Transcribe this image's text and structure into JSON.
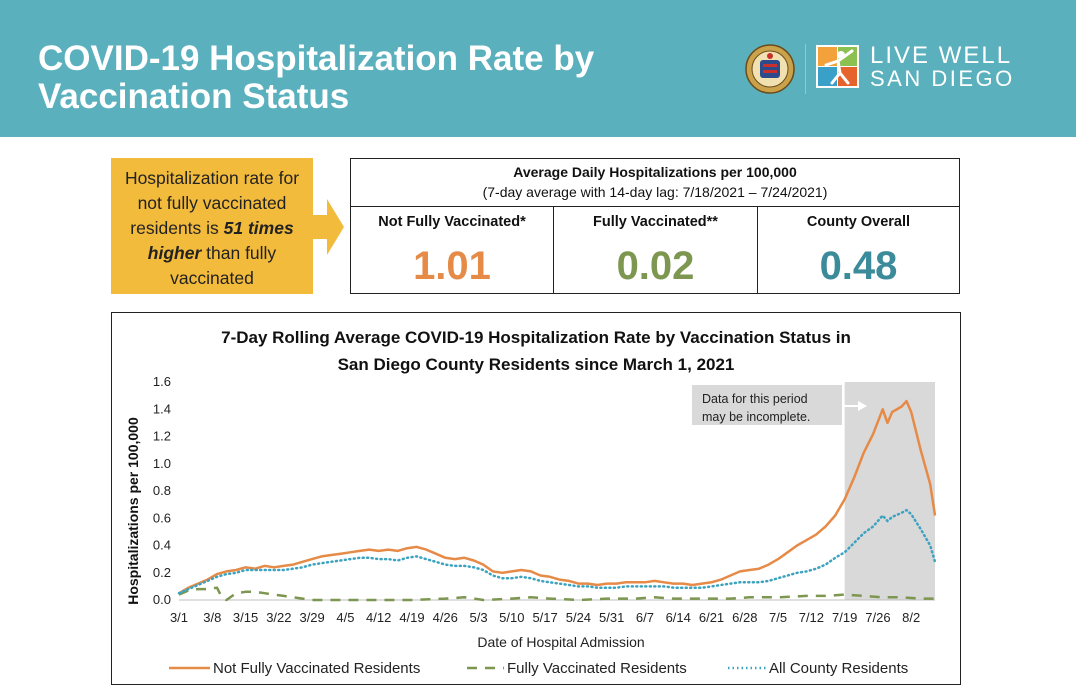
{
  "header": {
    "title_line1": "COVID-19 Hospitalization Rate by",
    "title_line2": "Vaccination Status",
    "logo_line1": "LIVE WELL",
    "logo_line2": "SAN DIEGO"
  },
  "callout": {
    "line1": "Hospitalization rate for",
    "line2": "not fully vaccinated",
    "line3_prefix": "residents is ",
    "line3_emph": "51 times",
    "line4_emph": "higher",
    "line4_suffix": " than fully",
    "line5": "vaccinated"
  },
  "stats": {
    "title": "Average Daily Hospitalizations per 100,000",
    "subtitle": "(7-day average with 14-day lag: 7/18/2021 – 7/24/2021)",
    "cells": [
      {
        "label": "Not Fully Vaccinated*",
        "value": "1.01",
        "color": "#e68a47"
      },
      {
        "label": "Fully Vaccinated**",
        "value": "0.02",
        "color": "#7d9650"
      },
      {
        "label": "County Overall",
        "value": "0.48",
        "color": "#3c8b9a"
      }
    ]
  },
  "chart_data": {
    "type": "line",
    "title_line1": "7-Day Rolling Average COVID-19 Hospitalization Rate by Vaccination Status in",
    "title_line2": "San Diego County Residents since March 1, 2021",
    "xlabel": "Date of Hospital Admission",
    "ylabel": "Hospitalizations per 100,000",
    "ylim": [
      0,
      1.6
    ],
    "yticks": [
      "0.0",
      "0.2",
      "0.4",
      "0.6",
      "0.8",
      "1.0",
      "1.2",
      "1.4",
      "1.6"
    ],
    "xticks": [
      "3/1",
      "3/8",
      "3/15",
      "3/22",
      "3/29",
      "4/5",
      "4/12",
      "4/19",
      "4/26",
      "5/3",
      "5/10",
      "5/17",
      "5/24",
      "5/31",
      "6/7",
      "6/14",
      "6/21",
      "6/28",
      "7/5",
      "7/12",
      "7/19",
      "7/26",
      "8/2"
    ],
    "x_days": [
      0,
      7,
      14,
      21,
      28,
      35,
      42,
      49,
      56,
      63,
      70,
      77,
      84,
      91,
      98,
      105,
      112,
      119,
      126,
      133,
      140,
      147,
      154
    ],
    "x_range_days": [
      0,
      159
    ],
    "shaded_region_days": [
      140,
      159
    ],
    "annotation_line1": "Data for this period",
    "annotation_line2": "may be incomplete.",
    "series": [
      {
        "name": "Not Fully Vaccinated Residents",
        "color": "#e68a47",
        "style": "solid",
        "points": [
          [
            0,
            0.05
          ],
          [
            2,
            0.09
          ],
          [
            4,
            0.12
          ],
          [
            6,
            0.15
          ],
          [
            8,
            0.19
          ],
          [
            10,
            0.21
          ],
          [
            12,
            0.22
          ],
          [
            14,
            0.24
          ],
          [
            16,
            0.23
          ],
          [
            18,
            0.25
          ],
          [
            20,
            0.24
          ],
          [
            22,
            0.25
          ],
          [
            24,
            0.26
          ],
          [
            26,
            0.28
          ],
          [
            28,
            0.3
          ],
          [
            30,
            0.32
          ],
          [
            32,
            0.33
          ],
          [
            34,
            0.34
          ],
          [
            36,
            0.35
          ],
          [
            38,
            0.36
          ],
          [
            40,
            0.37
          ],
          [
            42,
            0.36
          ],
          [
            44,
            0.37
          ],
          [
            46,
            0.36
          ],
          [
            48,
            0.38
          ],
          [
            50,
            0.39
          ],
          [
            52,
            0.37
          ],
          [
            54,
            0.34
          ],
          [
            56,
            0.31
          ],
          [
            58,
            0.3
          ],
          [
            60,
            0.31
          ],
          [
            62,
            0.29
          ],
          [
            64,
            0.26
          ],
          [
            66,
            0.21
          ],
          [
            68,
            0.2
          ],
          [
            70,
            0.21
          ],
          [
            72,
            0.22
          ],
          [
            74,
            0.21
          ],
          [
            76,
            0.18
          ],
          [
            78,
            0.17
          ],
          [
            80,
            0.15
          ],
          [
            82,
            0.14
          ],
          [
            84,
            0.12
          ],
          [
            86,
            0.12
          ],
          [
            88,
            0.11
          ],
          [
            90,
            0.12
          ],
          [
            92,
            0.12
          ],
          [
            94,
            0.13
          ],
          [
            96,
            0.13
          ],
          [
            98,
            0.13
          ],
          [
            100,
            0.14
          ],
          [
            102,
            0.13
          ],
          [
            104,
            0.12
          ],
          [
            106,
            0.12
          ],
          [
            108,
            0.11
          ],
          [
            110,
            0.12
          ],
          [
            112,
            0.13
          ],
          [
            114,
            0.15
          ],
          [
            116,
            0.18
          ],
          [
            118,
            0.21
          ],
          [
            120,
            0.22
          ],
          [
            122,
            0.23
          ],
          [
            124,
            0.26
          ],
          [
            126,
            0.3
          ],
          [
            128,
            0.35
          ],
          [
            130,
            0.4
          ],
          [
            132,
            0.44
          ],
          [
            134,
            0.48
          ],
          [
            136,
            0.54
          ],
          [
            138,
            0.62
          ],
          [
            140,
            0.74
          ],
          [
            142,
            0.9
          ],
          [
            144,
            1.08
          ],
          [
            146,
            1.22
          ],
          [
            148,
            1.4
          ],
          [
            149,
            1.3
          ],
          [
            150,
            1.38
          ],
          [
            152,
            1.42
          ],
          [
            153,
            1.46
          ],
          [
            154,
            1.38
          ],
          [
            156,
            1.1
          ],
          [
            158,
            0.85
          ],
          [
            159,
            0.62
          ]
        ]
      },
      {
        "name": "Fully Vaccinated Residents",
        "color": "#7d9650",
        "style": "dashed",
        "points": [
          [
            0,
            0.04
          ],
          [
            2,
            0.07
          ],
          [
            4,
            0.08
          ],
          [
            6,
            0.08
          ],
          [
            8,
            0.09
          ],
          [
            9,
            0.02
          ],
          [
            10,
            0.0
          ],
          [
            12,
            0.05
          ],
          [
            14,
            0.06
          ],
          [
            16,
            0.06
          ],
          [
            18,
            0.05
          ],
          [
            20,
            0.04
          ],
          [
            22,
            0.03
          ],
          [
            24,
            0.02
          ],
          [
            26,
            0.01
          ],
          [
            28,
            0.0
          ],
          [
            35,
            0.0
          ],
          [
            42,
            0.0
          ],
          [
            49,
            0.0
          ],
          [
            56,
            0.01
          ],
          [
            60,
            0.02
          ],
          [
            62,
            0.01
          ],
          [
            64,
            0.0
          ],
          [
            70,
            0.01
          ],
          [
            74,
            0.02
          ],
          [
            78,
            0.01
          ],
          [
            84,
            0.0
          ],
          [
            90,
            0.01
          ],
          [
            96,
            0.01
          ],
          [
            100,
            0.02
          ],
          [
            104,
            0.01
          ],
          [
            110,
            0.01
          ],
          [
            116,
            0.01
          ],
          [
            120,
            0.02
          ],
          [
            126,
            0.02
          ],
          [
            132,
            0.03
          ],
          [
            136,
            0.03
          ],
          [
            140,
            0.04
          ],
          [
            144,
            0.03
          ],
          [
            148,
            0.02
          ],
          [
            152,
            0.02
          ],
          [
            156,
            0.01
          ],
          [
            159,
            0.01
          ]
        ]
      },
      {
        "name": "All County Residents",
        "color": "#3ba3c0",
        "style": "dotted",
        "points": [
          [
            0,
            0.05
          ],
          [
            2,
            0.08
          ],
          [
            4,
            0.11
          ],
          [
            6,
            0.14
          ],
          [
            8,
            0.17
          ],
          [
            10,
            0.19
          ],
          [
            12,
            0.2
          ],
          [
            14,
            0.22
          ],
          [
            16,
            0.22
          ],
          [
            18,
            0.22
          ],
          [
            20,
            0.22
          ],
          [
            22,
            0.22
          ],
          [
            24,
            0.23
          ],
          [
            26,
            0.24
          ],
          [
            28,
            0.26
          ],
          [
            30,
            0.27
          ],
          [
            32,
            0.28
          ],
          [
            34,
            0.29
          ],
          [
            36,
            0.3
          ],
          [
            38,
            0.31
          ],
          [
            40,
            0.31
          ],
          [
            42,
            0.3
          ],
          [
            44,
            0.3
          ],
          [
            46,
            0.29
          ],
          [
            48,
            0.31
          ],
          [
            50,
            0.32
          ],
          [
            52,
            0.3
          ],
          [
            54,
            0.28
          ],
          [
            56,
            0.26
          ],
          [
            58,
            0.25
          ],
          [
            60,
            0.25
          ],
          [
            62,
            0.24
          ],
          [
            64,
            0.22
          ],
          [
            66,
            0.18
          ],
          [
            68,
            0.16
          ],
          [
            70,
            0.16
          ],
          [
            72,
            0.17
          ],
          [
            74,
            0.16
          ],
          [
            76,
            0.14
          ],
          [
            78,
            0.13
          ],
          [
            80,
            0.12
          ],
          [
            82,
            0.11
          ],
          [
            84,
            0.1
          ],
          [
            86,
            0.1
          ],
          [
            88,
            0.09
          ],
          [
            90,
            0.09
          ],
          [
            92,
            0.09
          ],
          [
            94,
            0.1
          ],
          [
            96,
            0.1
          ],
          [
            98,
            0.1
          ],
          [
            100,
            0.1
          ],
          [
            102,
            0.1
          ],
          [
            104,
            0.09
          ],
          [
            106,
            0.09
          ],
          [
            108,
            0.09
          ],
          [
            110,
            0.09
          ],
          [
            112,
            0.1
          ],
          [
            114,
            0.11
          ],
          [
            116,
            0.12
          ],
          [
            118,
            0.13
          ],
          [
            120,
            0.13
          ],
          [
            122,
            0.13
          ],
          [
            124,
            0.14
          ],
          [
            126,
            0.16
          ],
          [
            128,
            0.18
          ],
          [
            130,
            0.2
          ],
          [
            132,
            0.21
          ],
          [
            134,
            0.23
          ],
          [
            136,
            0.26
          ],
          [
            138,
            0.31
          ],
          [
            140,
            0.35
          ],
          [
            142,
            0.42
          ],
          [
            144,
            0.49
          ],
          [
            146,
            0.54
          ],
          [
            148,
            0.62
          ],
          [
            149,
            0.58
          ],
          [
            150,
            0.61
          ],
          [
            152,
            0.64
          ],
          [
            153,
            0.66
          ],
          [
            154,
            0.63
          ],
          [
            156,
            0.52
          ],
          [
            158,
            0.4
          ],
          [
            159,
            0.28
          ]
        ]
      }
    ]
  }
}
